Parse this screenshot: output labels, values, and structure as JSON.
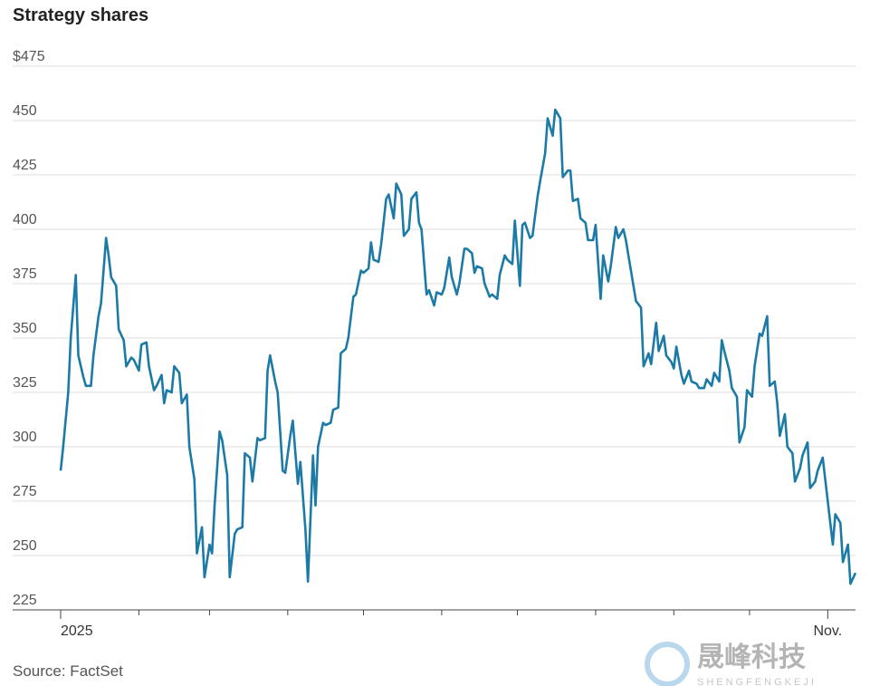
{
  "chart_data": {
    "type": "line",
    "title": "Strategy shares",
    "source": "Source: FactSet",
    "watermark": {
      "name": "晟峰科技",
      "romanized": "SHENGFENGKEJI"
    },
    "color": "#1b7aa6",
    "grid": true,
    "ylim": [
      225,
      475
    ],
    "yticks": [
      225,
      250,
      275,
      300,
      325,
      350,
      375,
      400,
      425,
      {
        "value": 450,
        "label": "450"
      },
      {
        "value": 475,
        "label": "$475"
      }
    ],
    "xlim": [
      0,
      315
    ],
    "xticks": [
      {
        "value": 0,
        "label": "2025"
      },
      31,
      59,
      90,
      120,
      151,
      181,
      212,
      243,
      273,
      {
        "value": 304,
        "label": "Nov."
      }
    ],
    "series": [
      {
        "name": "Strategy",
        "color": "#1b7aa6",
        "x": [
          0,
          1,
          3,
          4,
          6,
          7,
          9,
          10,
          12,
          13,
          15,
          16,
          18,
          19,
          20,
          22,
          23,
          25,
          26,
          28,
          29,
          31,
          32,
          34,
          35,
          37,
          38,
          40,
          41,
          42,
          44,
          45,
          47,
          48,
          50,
          51,
          53,
          54,
          56,
          57,
          59,
          60,
          61,
          63,
          64,
          66,
          67,
          69,
          70,
          72,
          73,
          75,
          76,
          78,
          79,
          81,
          82,
          83,
          85,
          86,
          88,
          89,
          91,
          92,
          94,
          95,
          97,
          98,
          100,
          101,
          102,
          104,
          105,
          107,
          108,
          110,
          111,
          113,
          114,
          116,
          117,
          119,
          120,
          122,
          123,
          124,
          126,
          127,
          129,
          130,
          132,
          133,
          135,
          136,
          138,
          139,
          141,
          142,
          143,
          145,
          146,
          148,
          149,
          151,
          152,
          154,
          155,
          157,
          158,
          160,
          161,
          163,
          164,
          165,
          167,
          168,
          170,
          171,
          173,
          174,
          176,
          177,
          179,
          180,
          182,
          183,
          184,
          186,
          187,
          189,
          190,
          192,
          193,
          195,
          196,
          198,
          199,
          201,
          202,
          203,
          205,
          206,
          208,
          209,
          211,
          212,
          214,
          215,
          217,
          218,
          220,
          221,
          223,
          224,
          225,
          227,
          228,
          230,
          231,
          233,
          234,
          236,
          237,
          239,
          240,
          242,
          243,
          244,
          246,
          247,
          249,
          250,
          252,
          253,
          255,
          256,
          258,
          259,
          261,
          262,
          263,
          265,
          266,
          268,
          269,
          271,
          272,
          274,
          275,
          277,
          278,
          280,
          281,
          283,
          284,
          285,
          287,
          288,
          290,
          291,
          293,
          294,
          296,
          297,
          299,
          300,
          302,
          303,
          304,
          306,
          307,
          309,
          310,
          312,
          313,
          315
        ],
        "values": [
          289,
          300,
          325,
          350,
          379,
          342,
          332,
          328,
          328,
          342,
          360,
          366,
          396,
          388,
          378,
          374,
          354,
          349,
          337,
          341,
          340,
          335,
          347,
          348,
          337,
          326,
          328,
          333,
          320,
          326,
          325,
          337,
          334,
          320,
          324,
          300,
          285,
          251,
          263,
          240,
          255,
          251,
          273,
          307,
          303,
          287,
          240,
          260,
          262,
          263,
          297,
          295,
          284,
          304,
          303,
          304,
          335,
          342,
          330,
          325,
          289,
          288,
          305,
          312,
          283,
          293,
          262,
          238,
          296,
          273,
          300,
          311,
          310,
          311,
          317,
          318,
          343,
          345,
          350,
          369,
          370,
          381,
          380,
          382,
          394,
          386,
          385,
          393,
          414,
          416,
          405,
          421,
          416,
          397,
          400,
          414,
          417,
          403,
          400,
          370,
          372,
          365,
          371,
          370,
          373,
          387,
          378,
          370,
          375,
          391,
          391,
          389,
          380,
          383,
          382,
          375,
          369,
          370,
          368,
          379,
          388,
          386,
          384,
          404,
          374,
          402,
          403,
          396,
          397,
          415,
          422,
          435,
          451,
          443,
          455,
          451,
          424,
          427,
          427,
          413,
          414,
          405,
          403,
          395,
          395,
          402,
          368,
          388,
          376,
          383,
          401,
          396,
          400,
          395,
          388,
          374,
          367,
          364,
          337,
          343,
          338,
          357,
          344,
          351,
          342,
          339,
          336,
          346,
          333,
          329,
          335,
          330,
          329,
          327,
          327,
          331,
          328,
          334,
          330,
          349,
          344,
          335,
          327,
          323,
          302,
          309,
          326,
          323,
          337,
          352,
          351,
          360,
          328,
          330,
          320,
          305,
          315,
          300,
          297,
          284,
          290,
          296,
          302,
          281,
          284,
          289,
          295,
          285,
          275,
          255,
          269,
          265,
          247,
          255,
          237,
          242
        ]
      }
    ]
  }
}
